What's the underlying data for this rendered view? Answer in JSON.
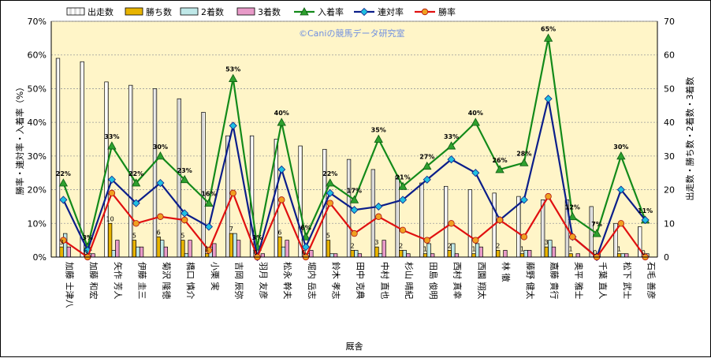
{
  "chart_data": {
    "type": "bar",
    "watermark": "©Caniの競馬データ研究室",
    "xlabel": "厩舎",
    "ylabel_left": "勝率・連対率・入着率（%）",
    "ylabel_right": "出走数・勝ち数・2着数・3着数",
    "ylim_left": [
      0,
      70
    ],
    "ylim_right": [
      0,
      70
    ],
    "left_ticks": [
      "0%",
      "10%",
      "20%",
      "30%",
      "40%",
      "50%",
      "60%",
      "70%"
    ],
    "right_ticks": [
      "0",
      "10",
      "20",
      "30",
      "40",
      "50",
      "60",
      "70"
    ],
    "legend_position": "top",
    "grid": true,
    "categories": [
      "加藤 士津八",
      "加藤 和宏",
      "矢作 芳人",
      "伊藤 圭三",
      "菊沢 隆徳",
      "橋口 慎介",
      "小栗 実",
      "吉岡 辰弥",
      "羽月 友彦",
      "松永 幹夫",
      "堀内 岳志",
      "鈴木 孝志",
      "田中 克典",
      "中村 直也",
      "杉山 晴紀",
      "田島 俊明",
      "西村 真幸",
      "西園 翔太",
      "林 徹",
      "藤野 健太",
      "嘉藤 貴行",
      "奥平 雅士",
      "千葉 直人",
      "松下 武士",
      "石毛 善彦"
    ],
    "series": [
      {
        "name": "出走数",
        "kind": "bar",
        "color": "#ffffff",
        "values": [
          59,
          58,
          52,
          51,
          50,
          47,
          43,
          36,
          36,
          35,
          33,
          32,
          29,
          26,
          24,
          22,
          21,
          20,
          19,
          18,
          17,
          17,
          15,
          10,
          9
        ]
      },
      {
        "name": "勝ち数",
        "kind": "bar",
        "color": "#e8b400",
        "values": [
          3,
          0,
          10,
          5,
          6,
          5,
          1,
          7,
          0,
          6,
          0,
          5,
          2,
          3,
          2,
          1,
          2,
          1,
          2,
          1,
          3,
          1,
          0,
          1,
          0
        ]
      },
      {
        "name": "2着数",
        "kind": "bar",
        "color": "#bfe8e8",
        "values": [
          7,
          1,
          2,
          3,
          5,
          1,
          3,
          7,
          0,
          3,
          1,
          1,
          2,
          1,
          2,
          4,
          4,
          4,
          0,
          2,
          5,
          0,
          1,
          1,
          1
        ]
      },
      {
        "name": "3着数",
        "kind": "bar",
        "color": "#e89ac8",
        "values": [
          3,
          1,
          5,
          3,
          3,
          5,
          4,
          5,
          1,
          5,
          2,
          1,
          1,
          5,
          1,
          1,
          1,
          3,
          2,
          2,
          3,
          1,
          0,
          1,
          0
        ]
      },
      {
        "name": "入着率",
        "kind": "line",
        "color": "#138a1a",
        "marker": "triangle",
        "values": [
          22,
          3,
          33,
          22,
          30,
          23,
          16,
          53,
          3,
          40,
          6,
          22,
          17,
          35,
          21,
          27,
          33,
          40,
          26,
          28,
          65,
          12,
          7,
          30,
          11
        ]
      },
      {
        "name": "連対率",
        "kind": "line",
        "color": "#0b1e8a",
        "marker": "diamond",
        "values": [
          17,
          2,
          23,
          16,
          22,
          13,
          9,
          39,
          0,
          26,
          3,
          19,
          14,
          15,
          17,
          23,
          29,
          25,
          11,
          17,
          47,
          6,
          0,
          20,
          11
        ]
      },
      {
        "name": "勝率",
        "kind": "line",
        "color": "#e01010",
        "marker": "circle",
        "values": [
          5,
          0,
          19,
          10,
          12,
          11,
          2,
          19,
          0,
          17,
          0,
          16,
          7,
          12,
          8,
          5,
          10,
          5,
          11,
          6,
          18,
          6,
          0,
          10,
          0
        ]
      }
    ],
    "data_labels": {
      "entry_rate": [
        "22%",
        "3%",
        "33%",
        "22%",
        "30%",
        "23%",
        "16%",
        "53%",
        "3%",
        "40%",
        "6%",
        "22%",
        "17%",
        "35%",
        "21%",
        "27%",
        "33%",
        "40%",
        "26%",
        "28%",
        "65%",
        "12%",
        "7%",
        "30%",
        "11%"
      ],
      "wins": [
        "3",
        "0",
        "10",
        "5",
        "6",
        "5",
        "1",
        "7",
        "0",
        "6",
        "0",
        "5",
        "2",
        "3",
        "2",
        "1",
        "2",
        "1",
        "2",
        "1",
        "3",
        "1",
        "0",
        "1",
        "0"
      ]
    }
  }
}
